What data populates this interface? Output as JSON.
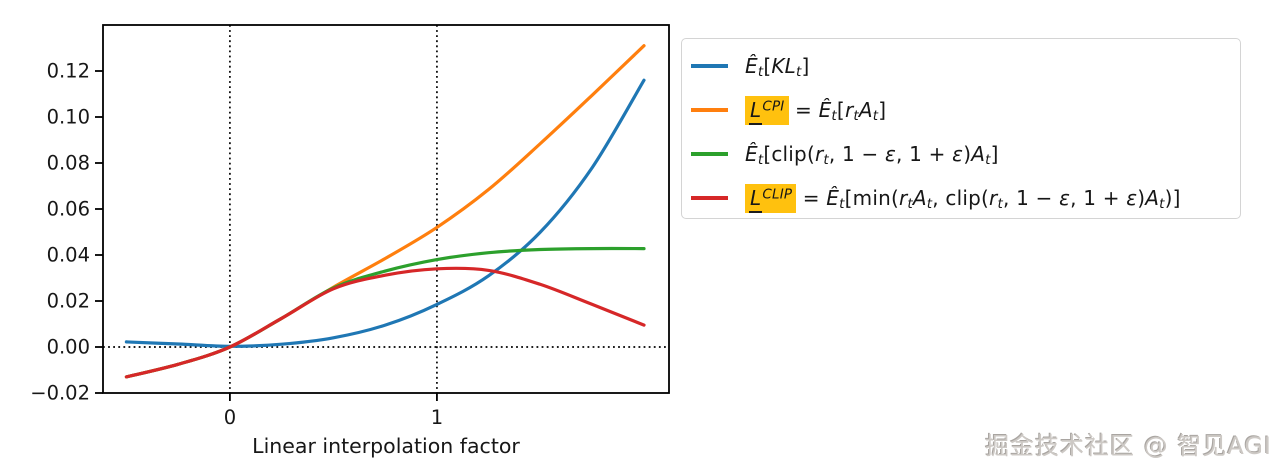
{
  "watermark": {
    "text": "掘金技术社区 @ 智见AGI"
  },
  "chart_data": {
    "type": "line",
    "title": "",
    "xlabel": "Linear interpolation factor",
    "ylabel": "",
    "xlim": [
      -0.613,
      2.121
    ],
    "ylim": [
      -0.02,
      0.14
    ],
    "x_ticks": [
      0,
      1
    ],
    "y_ticks": [
      -0.02,
      0.0,
      0.02,
      0.04,
      0.06,
      0.08,
      0.1,
      0.12
    ],
    "grid": false,
    "legend_position": "outside-right",
    "background_color": "#ffffff",
    "axis_color": "#000000",
    "guides": {
      "vlines_dotted": [
        0,
        1
      ],
      "hlines_dotted": [
        0
      ]
    },
    "x": [
      -0.5,
      -0.25,
      0,
      0.25,
      0.5,
      0.75,
      1.0,
      1.25,
      1.5,
      1.75,
      2.0
    ],
    "series": [
      {
        "key": "kl",
        "name": "E_t[KL_t]",
        "color": "#1f77b4",
        "values": [
          0.0022,
          0.0013,
          0.0003,
          0.0012,
          0.004,
          0.0095,
          0.0185,
          0.031,
          0.05,
          0.078,
          0.116
        ]
      },
      {
        "key": "cpi",
        "name": "L^CPI = E_t[r_t A_t]",
        "color": "#ff7f0e",
        "values": [
          -0.013,
          -0.0075,
          0.0,
          0.0125,
          0.026,
          0.0385,
          0.052,
          0.0685,
          0.0885,
          0.1095,
          0.131
        ]
      },
      {
        "key": "clip-term",
        "name": "E_t[clip(r_t, 1-eps, 1+eps) A_t]",
        "color": "#2ca02c",
        "values": [
          -0.013,
          -0.0075,
          0.0,
          0.0125,
          0.0257,
          0.033,
          0.038,
          0.041,
          0.0424,
          0.0428,
          0.0428
        ]
      },
      {
        "key": "clip-objective",
        "name": "L^CLIP = E_t[min(r_t A_t, clip(r_t, 1-eps, 1+eps) A_t)]",
        "color": "#d62728",
        "values": [
          -0.013,
          -0.0075,
          0.0,
          0.0125,
          0.0253,
          0.0312,
          0.034,
          0.0333,
          0.0272,
          0.0185,
          0.0095
        ]
      }
    ]
  },
  "legend": {
    "highlight_color": "#ffc10e",
    "items": [
      {
        "color": "#1f77b4",
        "tokens": [
          {
            "k": "i",
            "v": "Ê"
          },
          {
            "k": "sub",
            "v": "t"
          },
          {
            "k": "r",
            "v": "["
          },
          {
            "k": "i",
            "v": "KL"
          },
          {
            "k": "sub",
            "v": "t"
          },
          {
            "k": "r",
            "v": "]"
          }
        ]
      },
      {
        "color": "#ff7f0e",
        "tokens": [
          {
            "k": "hl",
            "base": "L",
            "sup": "CPI"
          },
          {
            "k": "r",
            "v": " = "
          },
          {
            "k": "i",
            "v": "Ê"
          },
          {
            "k": "sub",
            "v": "t"
          },
          {
            "k": "r",
            "v": "["
          },
          {
            "k": "i",
            "v": "r"
          },
          {
            "k": "sub",
            "v": "t"
          },
          {
            "k": "i",
            "v": "A"
          },
          {
            "k": "sub",
            "v": "t"
          },
          {
            "k": "r",
            "v": "]"
          }
        ]
      },
      {
        "color": "#2ca02c",
        "tokens": [
          {
            "k": "i",
            "v": "Ê"
          },
          {
            "k": "sub",
            "v": "t"
          },
          {
            "k": "r",
            "v": "[clip("
          },
          {
            "k": "i",
            "v": "r"
          },
          {
            "k": "sub",
            "v": "t"
          },
          {
            "k": "r",
            "v": ", 1 − "
          },
          {
            "k": "i",
            "v": "ε"
          },
          {
            "k": "r",
            "v": ", 1 + "
          },
          {
            "k": "i",
            "v": "ε"
          },
          {
            "k": "r",
            "v": ")"
          },
          {
            "k": "i",
            "v": "A"
          },
          {
            "k": "sub",
            "v": "t"
          },
          {
            "k": "r",
            "v": "]"
          }
        ]
      },
      {
        "color": "#d62728",
        "tokens": [
          {
            "k": "hl",
            "base": "L",
            "sup": "CLIP"
          },
          {
            "k": "r",
            "v": " = "
          },
          {
            "k": "i",
            "v": "Ê"
          },
          {
            "k": "sub",
            "v": "t"
          },
          {
            "k": "r",
            "v": "[min("
          },
          {
            "k": "i",
            "v": "r"
          },
          {
            "k": "sub",
            "v": "t"
          },
          {
            "k": "i",
            "v": "A"
          },
          {
            "k": "sub",
            "v": "t"
          },
          {
            "k": "r",
            "v": ", clip("
          },
          {
            "k": "i",
            "v": "r"
          },
          {
            "k": "sub",
            "v": "t"
          },
          {
            "k": "r",
            "v": ", 1 − "
          },
          {
            "k": "i",
            "v": "ε"
          },
          {
            "k": "r",
            "v": ", 1 + "
          },
          {
            "k": "i",
            "v": "ε"
          },
          {
            "k": "r",
            "v": ")"
          },
          {
            "k": "i",
            "v": "A"
          },
          {
            "k": "sub",
            "v": "t"
          },
          {
            "k": "r",
            "v": ")]"
          }
        ]
      }
    ]
  }
}
